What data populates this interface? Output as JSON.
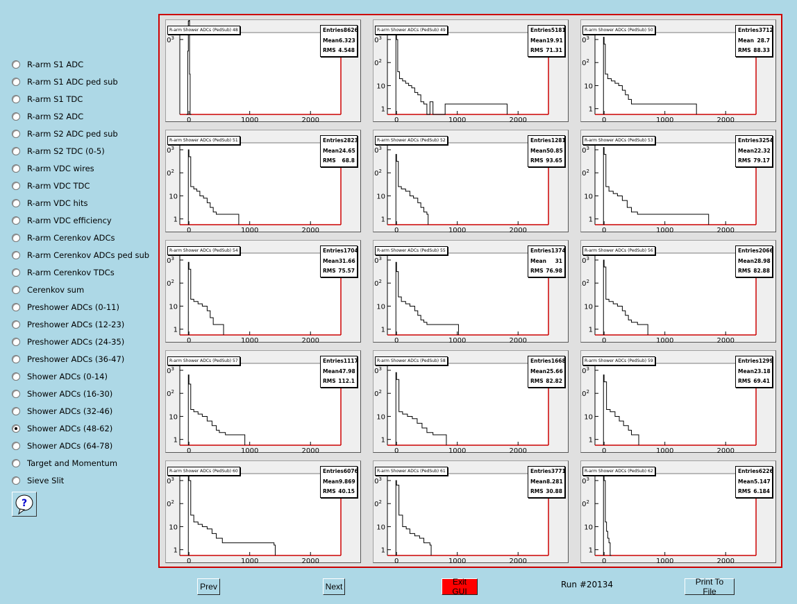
{
  "sidebar": {
    "items": [
      {
        "label": "R-arm S1 ADC",
        "selected": false
      },
      {
        "label": "R-arm S1 ADC ped sub",
        "selected": false
      },
      {
        "label": "R-arm S1 TDC",
        "selected": false
      },
      {
        "label": "R-arm S2 ADC",
        "selected": false
      },
      {
        "label": "R-arm S2 ADC ped sub",
        "selected": false
      },
      {
        "label": "R-arm S2 TDC (0-5)",
        "selected": false
      },
      {
        "label": "R-arm VDC wires",
        "selected": false
      },
      {
        "label": "R-arm VDC TDC",
        "selected": false
      },
      {
        "label": "R-arm VDC hits",
        "selected": false
      },
      {
        "label": "R-arm VDC efficiency",
        "selected": false
      },
      {
        "label": "R-arm Cerenkov ADCs",
        "selected": false
      },
      {
        "label": "R-arm Cerenkov ADCs ped sub",
        "selected": false
      },
      {
        "label": "R-arm Cerenkov TDCs",
        "selected": false
      },
      {
        "label": "Cerenkov sum",
        "selected": false
      },
      {
        "label": "Preshower ADCs (0-11)",
        "selected": false
      },
      {
        "label": "Preshower ADCs (12-23)",
        "selected": false
      },
      {
        "label": "Preshower ADCs (24-35)",
        "selected": false
      },
      {
        "label": "Preshower ADCs (36-47)",
        "selected": false
      },
      {
        "label": "Shower ADCs (0-14)",
        "selected": false
      },
      {
        "label": "Shower ADCs (16-30)",
        "selected": false
      },
      {
        "label": "Shower ADCs (32-46)",
        "selected": false
      },
      {
        "label": "Shower ADCs (48-62)",
        "selected": true
      },
      {
        "label": "Shower ADCs (64-78)",
        "selected": false
      },
      {
        "label": "Target and Momentum",
        "selected": false
      },
      {
        "label": "Sieve Slit",
        "selected": false
      }
    ],
    "help_icon": "question-mark-icon"
  },
  "stats_labels": {
    "entries": "Entries",
    "mean": "Mean",
    "rms": "RMS"
  },
  "colors": {
    "background": "#add8e6",
    "frame": "#cc0000",
    "axis": "#cc0000",
    "exit_button": "#ff0000"
  },
  "chart_data": [
    {
      "type": "histogram",
      "title": "R-arm Shower ADCs (PedSub) 48",
      "entries": "8626",
      "mean": "6.323",
      "rms": "4.548",
      "xlim": [
        -150,
        2500
      ],
      "xticks": [
        0,
        1000,
        2000
      ],
      "yscale": "log",
      "yticks": [
        "10^3"
      ],
      "bins": [
        [
          -40,
          0
        ],
        [
          -20,
          2.5
        ],
        [
          -10,
          3.8
        ],
        [
          0,
          4.2
        ],
        [
          10,
          1.5
        ],
        [
          20,
          0
        ]
      ]
    },
    {
      "type": "histogram",
      "title": "R-arm Shower ADCs (PedSub) 49",
      "entries": "5181",
      "mean": "19.91",
      "rms": "71.31",
      "xlim": [
        -150,
        2500
      ],
      "xticks": [
        0,
        1000,
        2000
      ],
      "yscale": "log",
      "yticks": [
        "1",
        "10",
        "10^2",
        "10^3"
      ],
      "bins": [
        [
          -10,
          3.2
        ],
        [
          0,
          3.0
        ],
        [
          20,
          1.6
        ],
        [
          50,
          1.3
        ],
        [
          100,
          1.2
        ],
        [
          150,
          1.1
        ],
        [
          200,
          1.0
        ],
        [
          250,
          0.9
        ],
        [
          300,
          0.7
        ],
        [
          350,
          0.6
        ],
        [
          400,
          0.3
        ],
        [
          450,
          0.2
        ],
        [
          500,
          0
        ],
        [
          550,
          0.3
        ],
        [
          600,
          0
        ],
        [
          800,
          0.2
        ],
        [
          1500,
          0.2
        ],
        [
          1800,
          0.2
        ]
      ]
    },
    {
      "type": "histogram",
      "title": "R-arm Shower ADCs (PedSub) 50",
      "entries": "3712",
      "mean": "28.7",
      "rms": "88.33",
      "xlim": [
        -150,
        2500
      ],
      "xticks": [
        0,
        1000,
        2000
      ],
      "yscale": "log",
      "yticks": [
        "1",
        "10",
        "10^2",
        "10^3"
      ],
      "bins": [
        [
          -10,
          3.1
        ],
        [
          0,
          2.8
        ],
        [
          20,
          1.5
        ],
        [
          60,
          1.3
        ],
        [
          120,
          1.2
        ],
        [
          180,
          1.1
        ],
        [
          240,
          1.0
        ],
        [
          300,
          0.8
        ],
        [
          350,
          0.6
        ],
        [
          400,
          0.4
        ],
        [
          450,
          0.2
        ],
        [
          550,
          0.2
        ],
        [
          700,
          0.2
        ],
        [
          900,
          0.2
        ],
        [
          1200,
          0.2
        ],
        [
          1500,
          0.2
        ]
      ]
    },
    {
      "type": "histogram",
      "title": "R-arm Shower ADCs (PedSub) 51",
      "entries": "2823",
      "mean": "24.65",
      "rms": "68.8",
      "xlim": [
        -150,
        2500
      ],
      "xticks": [
        0,
        1000,
        2000
      ],
      "yscale": "log",
      "yticks": [
        "1",
        "10",
        "10^2",
        "10^3"
      ],
      "bins": [
        [
          -10,
          3.0
        ],
        [
          0,
          2.7
        ],
        [
          30,
          1.4
        ],
        [
          80,
          1.3
        ],
        [
          130,
          1.2
        ],
        [
          180,
          1.0
        ],
        [
          240,
          0.9
        ],
        [
          300,
          0.7
        ],
        [
          350,
          0.5
        ],
        [
          400,
          0.3
        ],
        [
          450,
          0.2
        ],
        [
          550,
          0.2
        ],
        [
          800,
          0.2
        ]
      ]
    },
    {
      "type": "histogram",
      "title": "R-arm Shower ADCs (PedSub) 52",
      "entries": "1281",
      "mean": "50.85",
      "rms": "93.65",
      "xlim": [
        -150,
        2500
      ],
      "xticks": [
        0,
        1000,
        2000
      ],
      "yscale": "log",
      "yticks": [
        "1",
        "10",
        "10^2",
        "10^3"
      ],
      "bins": [
        [
          -10,
          2.8
        ],
        [
          0,
          2.5
        ],
        [
          30,
          1.4
        ],
        [
          80,
          1.3
        ],
        [
          150,
          1.2
        ],
        [
          220,
          1.0
        ],
        [
          280,
          0.9
        ],
        [
          350,
          0.7
        ],
        [
          400,
          0.5
        ],
        [
          450,
          0.3
        ],
        [
          500,
          0.2
        ]
      ]
    },
    {
      "type": "histogram",
      "title": "R-arm Shower ADCs (PedSub) 53",
      "entries": "3254",
      "mean": "22.32",
      "rms": "79.17",
      "xlim": [
        -150,
        2500
      ],
      "xticks": [
        0,
        1000,
        2000
      ],
      "yscale": "log",
      "yticks": [
        "1",
        "10",
        "10^2",
        "10^3"
      ],
      "bins": [
        [
          -10,
          3.1
        ],
        [
          0,
          2.8
        ],
        [
          30,
          1.4
        ],
        [
          80,
          1.2
        ],
        [
          150,
          1.1
        ],
        [
          220,
          1.0
        ],
        [
          300,
          0.8
        ],
        [
          380,
          0.5
        ],
        [
          450,
          0.3
        ],
        [
          550,
          0.2
        ],
        [
          900,
          0.2
        ],
        [
          1300,
          0.2
        ],
        [
          1700,
          0.2
        ]
      ]
    },
    {
      "type": "histogram",
      "title": "R-arm Shower ADCs (PedSub) 54",
      "entries": "1704",
      "mean": "31.66",
      "rms": "75.57",
      "xlim": [
        -150,
        2500
      ],
      "xticks": [
        0,
        1000,
        2000
      ],
      "yscale": "log",
      "yticks": [
        "1",
        "10",
        "10^2",
        "10^3"
      ],
      "bins": [
        [
          -10,
          2.9
        ],
        [
          0,
          2.6
        ],
        [
          30,
          1.3
        ],
        [
          80,
          1.2
        ],
        [
          150,
          1.1
        ],
        [
          220,
          1.0
        ],
        [
          300,
          0.8
        ],
        [
          350,
          0.5
        ],
        [
          400,
          0.2
        ],
        [
          550,
          0.2
        ]
      ]
    },
    {
      "type": "histogram",
      "title": "R-arm Shower ADCs (PedSub) 55",
      "entries": "1374",
      "mean": "31",
      "rms": "76.98",
      "xlim": [
        -150,
        2500
      ],
      "xticks": [
        0,
        1000,
        2000
      ],
      "yscale": "log",
      "yticks": [
        "1",
        "10",
        "10^2",
        "10^3"
      ],
      "bins": [
        [
          -10,
          2.9
        ],
        [
          0,
          2.5
        ],
        [
          30,
          1.4
        ],
        [
          80,
          1.2
        ],
        [
          150,
          1.1
        ],
        [
          220,
          1.0
        ],
        [
          300,
          0.8
        ],
        [
          350,
          0.6
        ],
        [
          400,
          0.4
        ],
        [
          450,
          0.3
        ],
        [
          500,
          0.2
        ],
        [
          800,
          0.2
        ],
        [
          1000,
          0.2
        ]
      ]
    },
    {
      "type": "histogram",
      "title": "R-arm Shower ADCs (PedSub) 56",
      "entries": "2066",
      "mean": "28.98",
      "rms": "82.88",
      "xlim": [
        -150,
        2500
      ],
      "xticks": [
        0,
        1000,
        2000
      ],
      "yscale": "log",
      "yticks": [
        "1",
        "10",
        "10^2",
        "10^3"
      ],
      "bins": [
        [
          -10,
          3.0
        ],
        [
          0,
          2.7
        ],
        [
          30,
          1.3
        ],
        [
          80,
          1.2
        ],
        [
          150,
          1.1
        ],
        [
          220,
          1.0
        ],
        [
          300,
          0.8
        ],
        [
          350,
          0.6
        ],
        [
          400,
          0.4
        ],
        [
          450,
          0.3
        ],
        [
          550,
          0.2
        ],
        [
          700,
          0.2
        ]
      ]
    },
    {
      "type": "histogram",
      "title": "R-arm Shower ADCs (PedSub) 57",
      "entries": "1117",
      "mean": "47.98",
      "rms": "112.1",
      "xlim": [
        -150,
        2500
      ],
      "xticks": [
        0,
        1000,
        2000
      ],
      "yscale": "log",
      "yticks": [
        "1",
        "10",
        "10^2",
        "10^3"
      ],
      "bins": [
        [
          -10,
          2.8
        ],
        [
          0,
          2.4
        ],
        [
          30,
          1.3
        ],
        [
          80,
          1.2
        ],
        [
          150,
          1.1
        ],
        [
          220,
          1.0
        ],
        [
          300,
          0.8
        ],
        [
          380,
          0.6
        ],
        [
          450,
          0.4
        ],
        [
          500,
          0.3
        ],
        [
          600,
          0.2
        ],
        [
          900,
          0.2
        ]
      ]
    },
    {
      "type": "histogram",
      "title": "R-arm Shower ADCs (PedSub) 58",
      "entries": "1668",
      "mean": "25.66",
      "rms": "82.82",
      "xlim": [
        -150,
        2500
      ],
      "xticks": [
        0,
        1000,
        2000
      ],
      "yscale": "log",
      "yticks": [
        "1",
        "10",
        "10^2",
        "10^3"
      ],
      "bins": [
        [
          -10,
          2.9
        ],
        [
          0,
          2.6
        ],
        [
          40,
          1.2
        ],
        [
          100,
          1.1
        ],
        [
          180,
          1.0
        ],
        [
          260,
          0.9
        ],
        [
          340,
          0.7
        ],
        [
          420,
          0.5
        ],
        [
          500,
          0.3
        ],
        [
          600,
          0.2
        ],
        [
          800,
          0.2
        ]
      ]
    },
    {
      "type": "histogram",
      "title": "R-arm Shower ADCs (PedSub) 59",
      "entries": "1299",
      "mean": "23.18",
      "rms": "69.41",
      "xlim": [
        -150,
        2500
      ],
      "xticks": [
        0,
        1000,
        2000
      ],
      "yscale": "log",
      "yticks": [
        "1",
        "10",
        "10^2",
        "10^3"
      ],
      "bins": [
        [
          -10,
          2.8
        ],
        [
          0,
          2.5
        ],
        [
          40,
          1.3
        ],
        [
          100,
          1.2
        ],
        [
          180,
          1.0
        ],
        [
          250,
          0.8
        ],
        [
          320,
          0.6
        ],
        [
          400,
          0.4
        ],
        [
          450,
          0.2
        ],
        [
          550,
          0.2
        ]
      ]
    },
    {
      "type": "histogram",
      "title": "R-arm Shower ADCs (PedSub) 60",
      "entries": "6076",
      "mean": "9.869",
      "rms": "40.15",
      "xlim": [
        -150,
        2500
      ],
      "xticks": [
        0,
        1000,
        2000
      ],
      "yscale": "log",
      "yticks": [
        "1",
        "10",
        "10^2",
        "10^3"
      ],
      "bins": [
        [
          -10,
          3.2
        ],
        [
          0,
          3.0
        ],
        [
          30,
          1.5
        ],
        [
          80,
          1.2
        ],
        [
          150,
          1.1
        ],
        [
          220,
          1.0
        ],
        [
          300,
          0.9
        ],
        [
          380,
          0.7
        ],
        [
          450,
          0.5
        ],
        [
          550,
          0.3
        ],
        [
          1400,
          0.2
        ]
      ]
    },
    {
      "type": "histogram",
      "title": "R-arm Shower ADCs (PedSub) 61",
      "entries": "3771",
      "mean": "8.281",
      "rms": "30.88",
      "xlim": [
        -150,
        2500
      ],
      "xticks": [
        0,
        1000,
        2000
      ],
      "yscale": "log",
      "yticks": [
        "1",
        "10",
        "10^2",
        "10^3"
      ],
      "bins": [
        [
          -10,
          3.0
        ],
        [
          0,
          2.8
        ],
        [
          40,
          1.5
        ],
        [
          100,
          1.0
        ],
        [
          160,
          0.9
        ],
        [
          220,
          0.7
        ],
        [
          300,
          0.6
        ],
        [
          380,
          0.5
        ],
        [
          450,
          0.3
        ],
        [
          550,
          0.2
        ]
      ]
    },
    {
      "type": "histogram",
      "title": "R-arm Shower ADCs (PedSub) 62",
      "entries": "6226",
      "mean": "5.147",
      "rms": "6.184",
      "xlim": [
        -150,
        2500
      ],
      "xticks": [
        0,
        1000,
        2000
      ],
      "yscale": "log",
      "yticks": [
        "1",
        "10",
        "10^2",
        "10^3"
      ],
      "bins": [
        [
          -10,
          3.2
        ],
        [
          0,
          3.0
        ],
        [
          20,
          1.2
        ],
        [
          40,
          0.8
        ],
        [
          60,
          0.5
        ],
        [
          80,
          0.3
        ],
        [
          100,
          0
        ]
      ]
    }
  ],
  "bottom": {
    "prev_label": "Prev",
    "next_label": "Next",
    "exit_label": "Exit GUI",
    "run_label": "Run #20134",
    "print_label": "Print To File"
  }
}
